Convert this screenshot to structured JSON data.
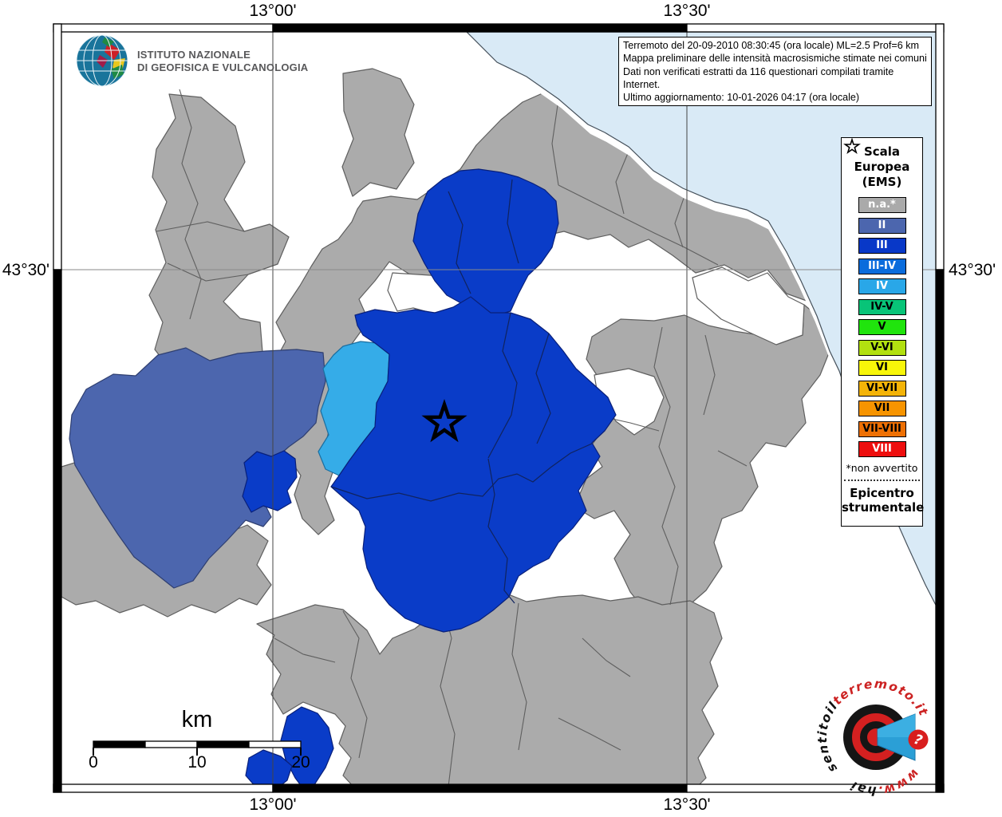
{
  "header": {
    "ingv_logo": {
      "line1": "ISTITUTO NAZIONALE",
      "line2": "DI GEOFISICA E VULCANOLOGIA"
    },
    "title_box": {
      "lines": [
        "Terremoto del 20-09-2010 08:30:45 (ora locale) ML=2.5 Prof=6 km",
        "Mappa preliminare delle intensità macrosismiche stimate nei comuni",
        "Dati non verificati estratti da 116 questionari compilati tramite Internet.",
        "Ultimo aggiornamento: 10-01-2026 04:17 (ora locale)"
      ]
    }
  },
  "axes": {
    "top_left": "13°00'",
    "top_right": "13°30'",
    "bottom_left": "13°00'",
    "bottom_right": "13°30'",
    "left": "43°30'",
    "right": "43°30'"
  },
  "legend": {
    "title_lines": [
      "Scala",
      "Europea",
      "(EMS)"
    ],
    "entries": [
      {
        "label": "n.a.*",
        "color": "#aaaaaa",
        "text": "#ffffff"
      },
      {
        "label": "II",
        "color": "#4c66ae",
        "text": "#ffffff"
      },
      {
        "label": "III",
        "color": "#0838c8",
        "text": "#ffffff"
      },
      {
        "label": "III-IV",
        "color": "#0a6cdc",
        "text": "#ffffff"
      },
      {
        "label": "IV",
        "color": "#29a7e8",
        "text": "#ffffff"
      },
      {
        "label": "IV-V",
        "color": "#08c478",
        "text": "#000000"
      },
      {
        "label": "V",
        "color": "#20e40d",
        "text": "#000000"
      },
      {
        "label": "V-VI",
        "color": "#b2e010",
        "text": "#000000"
      },
      {
        "label": "VI",
        "color": "#f8f609",
        "text": "#000000"
      },
      {
        "label": "VI-VII",
        "color": "#f4b408",
        "text": "#000000"
      },
      {
        "label": "VII",
        "color": "#f79400",
        "text": "#000000"
      },
      {
        "label": "VII-VIII",
        "color": "#ee7004",
        "text": "#000000"
      },
      {
        "label": "VIII",
        "color": "#ee0e0e",
        "text": "#ffffff"
      }
    ],
    "footnote": "*non avvertito",
    "epicenter_lines": [
      "Epicentro",
      "strumentale"
    ]
  },
  "scale_bar": {
    "unit": "km",
    "labels": [
      "0",
      "10",
      "20"
    ]
  },
  "watermark": {
    "segment_left": "sentitoil",
    "segment_top": "terremoto.it",
    "segment_bottom_prefix": "www.",
    "segment_bottom": "hai",
    "badge": "?"
  },
  "map_colors": {
    "sea": "#d9eaf6",
    "no_data": "#ababab",
    "intensity_ii": "#4c66ae",
    "intensity_iii": "#0a3cc8",
    "intensity_iv": "#35ace8"
  }
}
